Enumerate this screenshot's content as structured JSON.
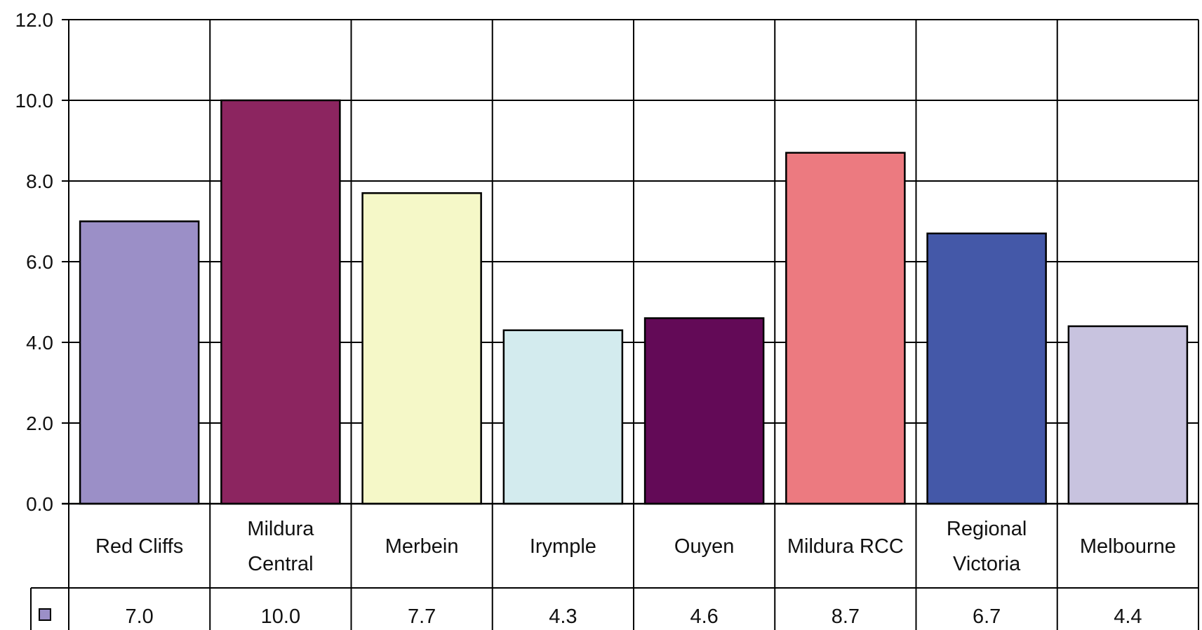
{
  "chart_data": {
    "type": "bar",
    "categories": [
      [
        "Red Cliffs"
      ],
      [
        "Mildura",
        "Central"
      ],
      [
        "Merbein"
      ],
      [
        "Irymple"
      ],
      [
        "Ouyen"
      ],
      [
        "Mildura RCC"
      ],
      [
        "Regional",
        "Victoria"
      ],
      [
        "Melbourne"
      ]
    ],
    "values": [
      7.0,
      10.0,
      7.7,
      4.3,
      4.6,
      8.7,
      6.7,
      4.4
    ],
    "value_labels": [
      "7.0",
      "10.0",
      "7.7",
      "4.3",
      "4.6",
      "8.7",
      "6.7",
      "4.4"
    ],
    "y_ticks": [
      "0.0",
      "2.0",
      "4.0",
      "6.0",
      "8.0",
      "10.0",
      "12.0"
    ],
    "ylim": [
      0,
      12
    ],
    "grid": true,
    "data_table": true,
    "colors": [
      "#9b8fc7",
      "#8c2560",
      "#f5f8c8",
      "#d3ebee",
      "#630a57",
      "#ec7a80",
      "#4458a8",
      "#c8c3df"
    ],
    "legend_key_color": "#9b8fc7"
  }
}
